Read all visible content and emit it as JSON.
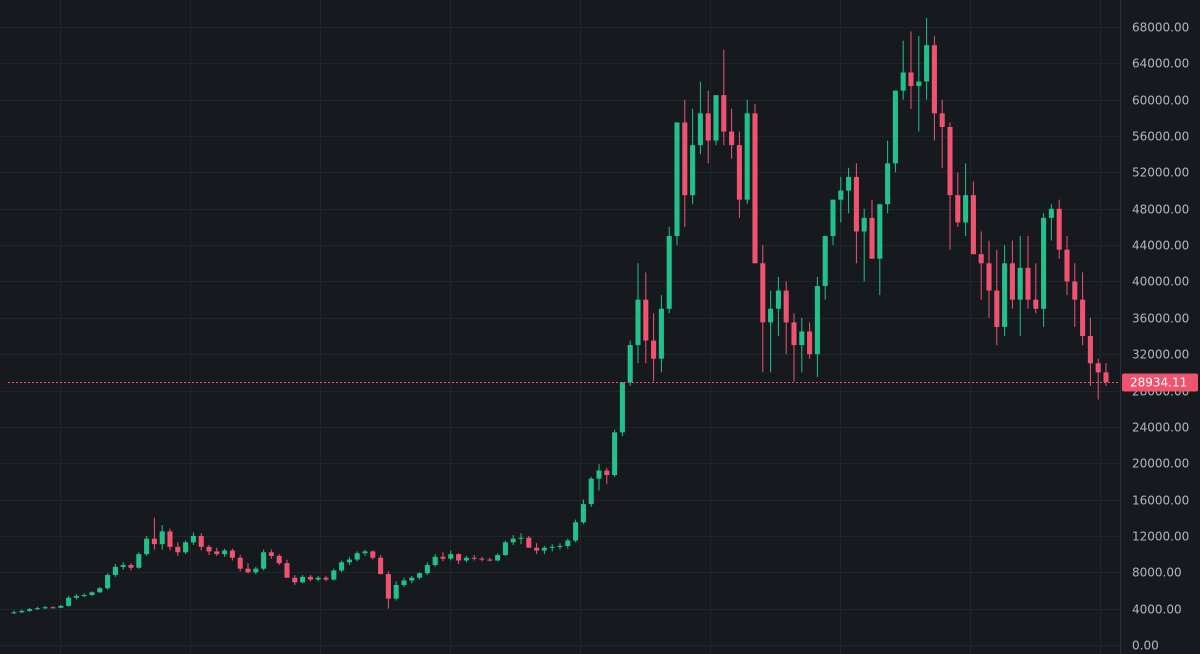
{
  "chart_data": {
    "type": "candlestick",
    "theme": "dark",
    "grid": true,
    "ylim": [
      0,
      68000
    ],
    "y_ticks": [
      0,
      4000,
      8000,
      12000,
      16000,
      20000,
      24000,
      28000,
      32000,
      36000,
      40000,
      44000,
      48000,
      52000,
      56000,
      60000,
      64000,
      68000
    ],
    "y_tick_labels": [
      "0.00",
      "4000.00",
      "8000.00",
      "12000.00",
      "16000.00",
      "20000.00",
      "24000.00",
      "28000.00",
      "32000.00",
      "36000.00",
      "40000.00",
      "44000.00",
      "48000.00",
      "52000.00",
      "56000.00",
      "60000.00",
      "64000.00",
      "68000.00"
    ],
    "last_price": 28934.11,
    "last_price_label": "28934.11",
    "colors": {
      "background": "#161a1f",
      "grid": "#20252c",
      "up": "#26a69a",
      "up_bright": "#22c08a",
      "down": "#ef5370",
      "axis_text": "#b2b5be",
      "price_line": "#ef5370",
      "axis_border": "#2a2e39"
    },
    "candles_ohlc": [
      [
        3500,
        3800,
        3400,
        3600
      ],
      [
        3600,
        3900,
        3500,
        3750
      ],
      [
        3750,
        4100,
        3650,
        3950
      ],
      [
        3950,
        4200,
        3850,
        4050
      ],
      [
        4050,
        4300,
        3950,
        4150
      ],
      [
        4150,
        4250,
        4000,
        4100
      ],
      [
        4100,
        4400,
        4050,
        4300
      ],
      [
        4300,
        5400,
        4200,
        5200
      ],
      [
        5200,
        5600,
        5000,
        5400
      ],
      [
        5400,
        5700,
        5250,
        5500
      ],
      [
        5500,
        5900,
        5400,
        5800
      ],
      [
        5800,
        6400,
        5700,
        6250
      ],
      [
        6250,
        7900,
        6100,
        7700
      ],
      [
        7700,
        8900,
        7500,
        8600
      ],
      [
        8600,
        9100,
        8300,
        8800
      ],
      [
        8800,
        9000,
        8200,
        8500
      ],
      [
        8500,
        10200,
        8400,
        10000
      ],
      [
        10000,
        12000,
        9800,
        11700
      ],
      [
        11700,
        14000,
        10500,
        11100
      ],
      [
        11100,
        13200,
        10500,
        12500
      ],
      [
        12500,
        12800,
        10400,
        10800
      ],
      [
        10800,
        11300,
        9800,
        10200
      ],
      [
        10200,
        11500,
        10000,
        11300
      ],
      [
        11300,
        12400,
        11000,
        12000
      ],
      [
        12000,
        12300,
        10400,
        10800
      ],
      [
        10800,
        11000,
        9900,
        10300
      ],
      [
        10300,
        10700,
        9800,
        10000
      ],
      [
        10000,
        10600,
        9700,
        10400
      ],
      [
        10400,
        10600,
        9300,
        9600
      ],
      [
        9600,
        9900,
        8100,
        8400
      ],
      [
        8400,
        9000,
        7900,
        8000
      ],
      [
        8000,
        8600,
        7800,
        8400
      ],
      [
        8400,
        10500,
        8200,
        10200
      ],
      [
        10200,
        10500,
        9500,
        9800
      ],
      [
        9800,
        10000,
        8800,
        9000
      ],
      [
        9000,
        9400,
        7600,
        7400
      ],
      [
        7400,
        7700,
        6600,
        6900
      ],
      [
        6900,
        7700,
        6800,
        7500
      ],
      [
        7500,
        7700,
        7000,
        7200
      ],
      [
        7200,
        7600,
        7000,
        7400
      ],
      [
        7400,
        7600,
        7000,
        7200
      ],
      [
        7200,
        8400,
        7100,
        8200
      ],
      [
        8200,
        9300,
        8000,
        9100
      ],
      [
        9100,
        9700,
        8800,
        9400
      ],
      [
        9400,
        10300,
        9200,
        10100
      ],
      [
        10100,
        10500,
        9800,
        10300
      ],
      [
        10300,
        10400,
        9400,
        9600
      ],
      [
        9600,
        9900,
        7900,
        7800
      ],
      [
        7800,
        8100,
        4000,
        5100
      ],
      [
        5100,
        7000,
        4900,
        6600
      ],
      [
        6600,
        7400,
        6400,
        7100
      ],
      [
        7100,
        7600,
        6800,
        7400
      ],
      [
        7400,
        8000,
        7200,
        7900
      ],
      [
        7900,
        9100,
        7700,
        8800
      ],
      [
        8800,
        10000,
        8600,
        9700
      ],
      [
        9700,
        10200,
        9200,
        9500
      ],
      [
        9500,
        10400,
        9300,
        10000
      ],
      [
        10000,
        10100,
        8900,
        9300
      ],
      [
        9300,
        9800,
        9100,
        9600
      ],
      [
        9600,
        9900,
        9300,
        9500
      ],
      [
        9500,
        9700,
        9200,
        9400
      ],
      [
        9400,
        9600,
        9200,
        9300
      ],
      [
        9300,
        10100,
        9200,
        9900
      ],
      [
        9900,
        11500,
        9800,
        11300
      ],
      [
        11300,
        12100,
        11000,
        11700
      ],
      [
        11700,
        12300,
        11100,
        11800
      ],
      [
        11800,
        12000,
        10900,
        10700
      ],
      [
        10700,
        11200,
        10000,
        10400
      ],
      [
        10400,
        10900,
        10000,
        10700
      ],
      [
        10700,
        11100,
        10300,
        10800
      ],
      [
        10800,
        11200,
        10500,
        10900
      ],
      [
        10900,
        11700,
        10600,
        11500
      ],
      [
        11500,
        13800,
        11300,
        13500
      ],
      [
        13500,
        16000,
        13300,
        15500
      ],
      [
        15500,
        18500,
        15200,
        18300
      ],
      [
        18300,
        19900,
        17000,
        19200
      ],
      [
        19200,
        19500,
        17700,
        18700
      ],
      [
        18700,
        23700,
        18500,
        23400
      ],
      [
        23400,
        28800,
        23000,
        28900
      ],
      [
        28900,
        33500,
        28500,
        33000
      ],
      [
        33000,
        42000,
        31000,
        38000
      ],
      [
        38000,
        41000,
        31000,
        33500
      ],
      [
        33500,
        36500,
        29000,
        31500
      ],
      [
        31500,
        38500,
        30000,
        37000
      ],
      [
        37000,
        46000,
        36500,
        45000
      ],
      [
        45000,
        52500,
        44000,
        57500
      ],
      [
        57500,
        60000,
        46000,
        49500
      ],
      [
        49500,
        59000,
        48500,
        55000
      ],
      [
        55000,
        62000,
        54000,
        58500
      ],
      [
        58500,
        61000,
        53000,
        55500
      ],
      [
        55500,
        60500,
        55000,
        60500
      ],
      [
        60500,
        65500,
        55000,
        56500
      ],
      [
        56500,
        59000,
        53500,
        55000
      ],
      [
        55000,
        56500,
        47000,
        49000
      ],
      [
        49000,
        60000,
        48500,
        58500
      ],
      [
        58500,
        59500,
        46000,
        42000
      ],
      [
        42000,
        44000,
        30000,
        35500
      ],
      [
        35500,
        39000,
        30000,
        37000
      ],
      [
        37000,
        40500,
        34000,
        39000
      ],
      [
        39000,
        40000,
        32000,
        35500
      ],
      [
        35500,
        36500,
        29000,
        33000
      ],
      [
        33000,
        36000,
        30000,
        34500
      ],
      [
        34500,
        35500,
        31500,
        32000
      ],
      [
        32000,
        40500,
        29500,
        39500
      ],
      [
        39500,
        43500,
        38000,
        45000
      ],
      [
        45000,
        48000,
        44000,
        49000
      ],
      [
        49000,
        51500,
        46500,
        50000
      ],
      [
        50000,
        52500,
        47500,
        51500
      ],
      [
        51500,
        53000,
        42000,
        45500
      ],
      [
        45500,
        48000,
        40000,
        47000
      ],
      [
        47000,
        49000,
        43000,
        42500
      ],
      [
        42500,
        48000,
        38500,
        48500
      ],
      [
        48500,
        55500,
        47500,
        53000
      ],
      [
        53000,
        58500,
        52000,
        61000
      ],
      [
        61000,
        66500,
        60000,
        63000
      ],
      [
        63000,
        67500,
        59000,
        61500
      ],
      [
        61500,
        67000,
        56500,
        62000
      ],
      [
        62000,
        69000,
        60000,
        66000
      ],
      [
        66000,
        67000,
        55500,
        58500
      ],
      [
        58500,
        60000,
        52500,
        57000
      ],
      [
        57000,
        57500,
        43500,
        49500
      ],
      [
        49500,
        52000,
        46000,
        46500
      ],
      [
        46500,
        53000,
        45000,
        49500
      ],
      [
        49500,
        51000,
        44000,
        43000
      ],
      [
        43000,
        45500,
        38000,
        42000
      ],
      [
        42000,
        44500,
        36000,
        39000
      ],
      [
        39000,
        43500,
        33000,
        35000
      ],
      [
        35000,
        44000,
        34000,
        42000
      ],
      [
        42000,
        44500,
        37000,
        38000
      ],
      [
        38000,
        45000,
        34000,
        41500
      ],
      [
        41500,
        45000,
        37000,
        38000
      ],
      [
        38000,
        42000,
        36500,
        37000
      ],
      [
        37000,
        47500,
        35000,
        47000
      ],
      [
        47000,
        48500,
        44500,
        48000
      ],
      [
        48000,
        49000,
        42500,
        43500
      ],
      [
        43500,
        45000,
        38500,
        40000
      ],
      [
        40000,
        42000,
        35000,
        38000
      ],
      [
        38000,
        41000,
        33000,
        34000
      ],
      [
        34000,
        36000,
        28500,
        31000
      ],
      [
        31000,
        31500,
        27000,
        30000
      ],
      [
        30000,
        31000,
        28500,
        28934
      ]
    ]
  }
}
